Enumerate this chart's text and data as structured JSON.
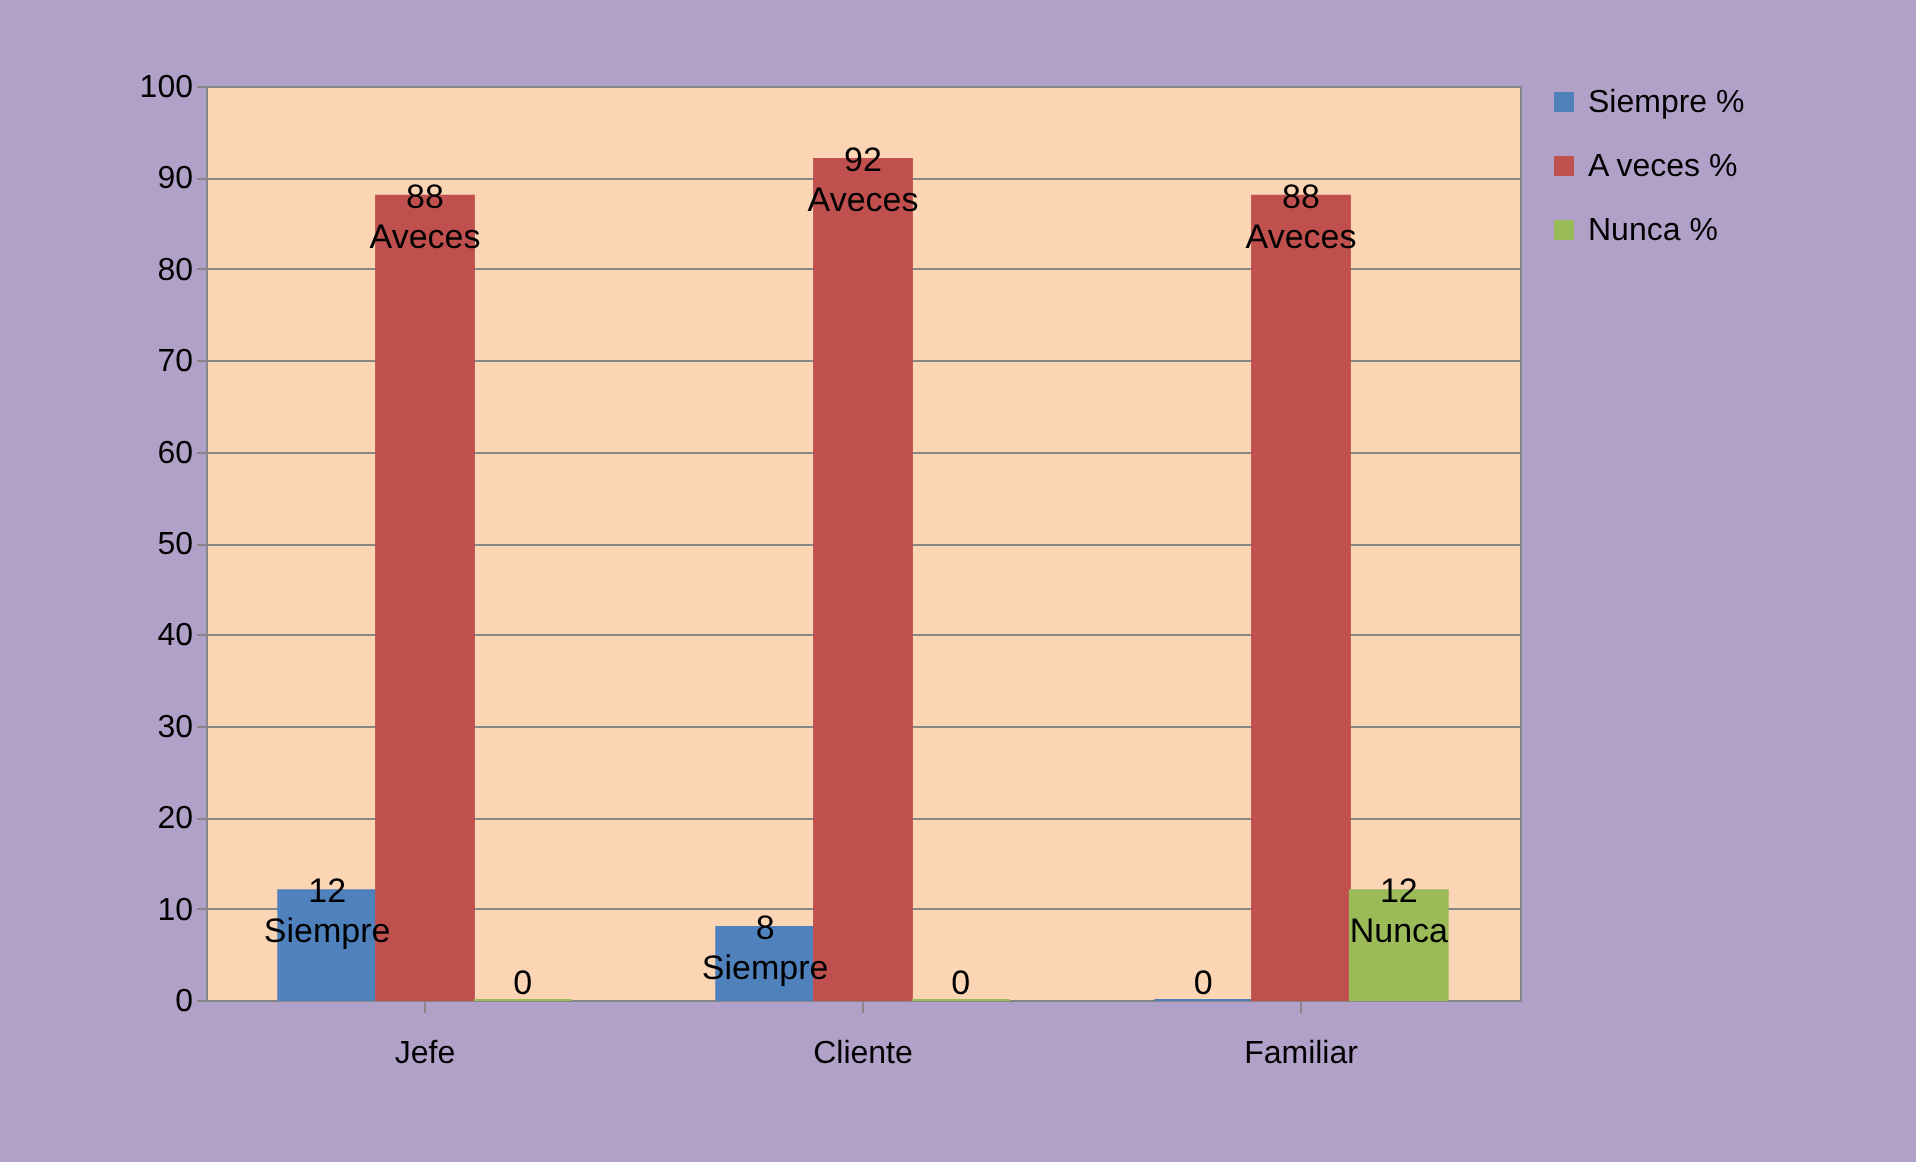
{
  "chart_data": {
    "type": "bar",
    "categories": [
      "Jefe",
      "Cliente",
      "Familiar"
    ],
    "series": [
      {
        "name": "Siempre %",
        "color": "#4f81bd",
        "values": [
          12,
          8,
          0
        ],
        "value_labels": [
          "12\nSiempre",
          "8\nSiempre",
          "0"
        ]
      },
      {
        "name": "A veces %",
        "color": "#c0504d",
        "values": [
          88,
          92,
          88
        ],
        "value_labels": [
          "88\nAveces",
          "92\nAveces",
          "88\nAveces"
        ]
      },
      {
        "name": "Nunca %",
        "color": "#9bbb59",
        "values": [
          0,
          0,
          12
        ],
        "value_labels": [
          "0",
          "0",
          "12\nNunca"
        ]
      }
    ],
    "ylim": [
      0,
      100
    ],
    "yticks": [
      0,
      10,
      20,
      30,
      40,
      50,
      60,
      70,
      80,
      90,
      100
    ],
    "grid": "y",
    "legend": "right"
  }
}
